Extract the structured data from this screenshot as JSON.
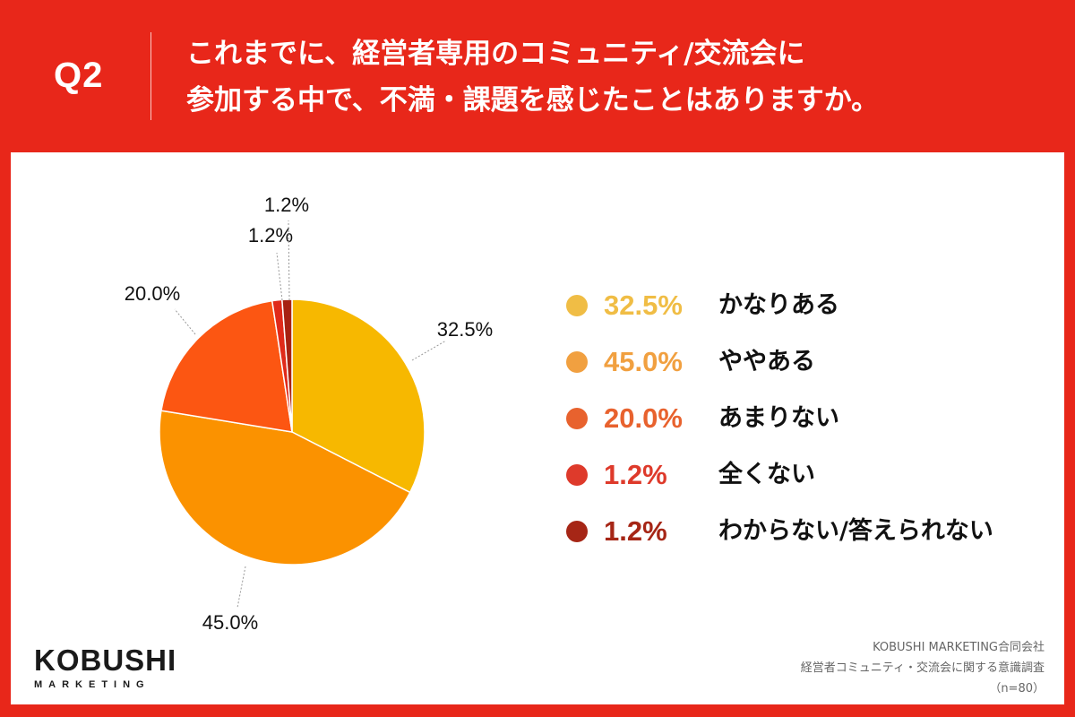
{
  "header": {
    "question_label": "Q2",
    "title_line1": "これまでに、経営者専用のコミュニティ/交流会に",
    "title_line2": "参加する中で、不満・課題を感じたことはありますか。"
  },
  "chart_data": {
    "type": "pie",
    "slices": [
      {
        "label": "かなりある",
        "value": 32.5,
        "value_text": "32.5%",
        "color": "#f7b800",
        "legend_color": "#f0bd45"
      },
      {
        "label": "ややある",
        "value": 45.0,
        "value_text": "45.0%",
        "color": "#fb9200",
        "legend_color": "#f1a040"
      },
      {
        "label": "あまりない",
        "value": 20.0,
        "value_text": "20.0%",
        "color": "#fc5612",
        "legend_color": "#e8622e"
      },
      {
        "label": "全くない",
        "value": 1.2,
        "value_text": "1.2%",
        "color": "#e02a1a",
        "legend_color": "#de3a2b"
      },
      {
        "label": "わからない/答えられない",
        "value": 1.2,
        "value_text": "1.2%",
        "color": "#a72112",
        "legend_color": "#a62616"
      }
    ],
    "start": "12 o'clock, clockwise"
  },
  "logo": {
    "main": "KOBUSHI",
    "sub": "MARKETING"
  },
  "source": {
    "company": "KOBUSHI MARKETING合同会社",
    "survey": "経営者コミュニティ・交流会に関する意識調査",
    "sample": "（n=80）"
  },
  "colors": {
    "background": "#e8271a",
    "panel": "#ffffff"
  }
}
